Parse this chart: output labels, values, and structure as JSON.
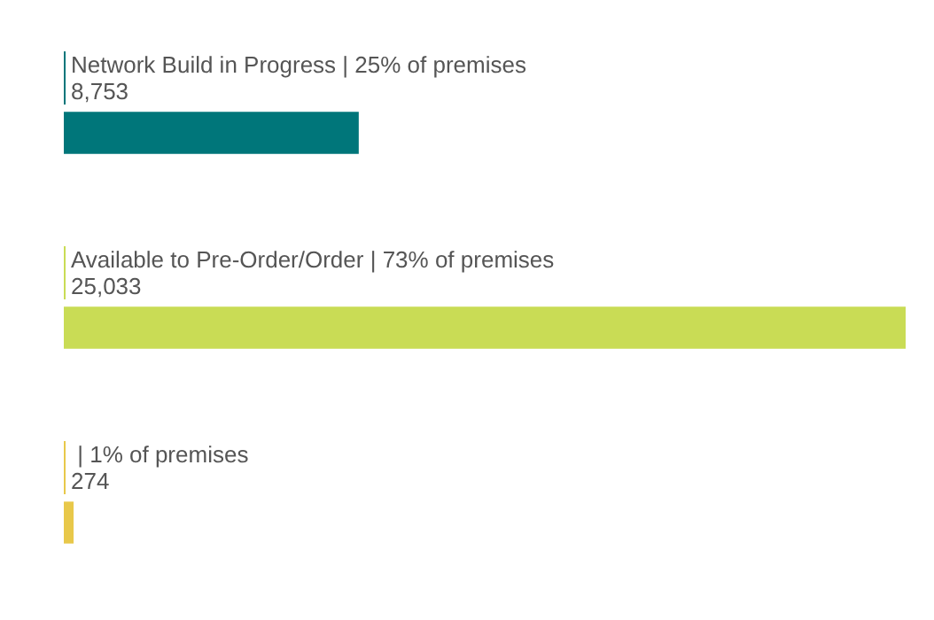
{
  "chart_data": {
    "type": "bar",
    "orientation": "horizontal",
    "categories": [
      "Network Build in Progress | 25% of premises",
      "Available to Pre-Order/Order | 73% of premises",
      " | 1% of premises"
    ],
    "values": [
      8753,
      25033,
      274
    ],
    "colors": [
      "#00767a",
      "#c9dc55",
      "#e8c84a"
    ],
    "value_labels": [
      "8,753",
      "25,033",
      "274"
    ]
  }
}
